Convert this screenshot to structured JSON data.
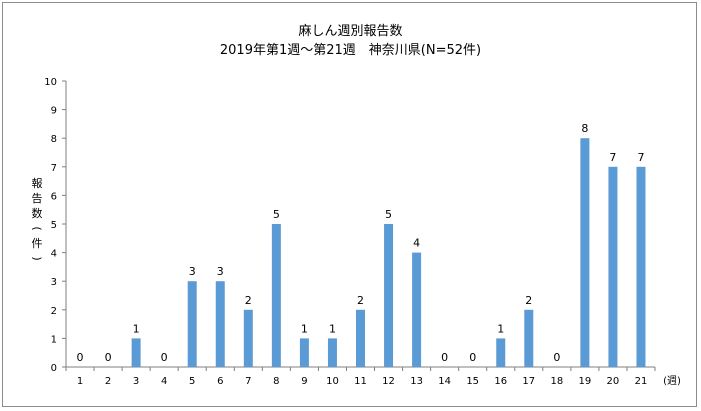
{
  "chart_data": {
    "type": "bar",
    "title": "麻しん週別報告数",
    "subtitle": "2019年第1週～第21週　神奈川県(N=52件)",
    "ylabel": "報告数(件)",
    "xlabel": "(週)",
    "categories": [
      "1",
      "2",
      "3",
      "4",
      "5",
      "6",
      "7",
      "8",
      "9",
      "10",
      "11",
      "12",
      "13",
      "14",
      "15",
      "16",
      "17",
      "18",
      "19",
      "20",
      "21"
    ],
    "values": [
      0,
      0,
      1,
      0,
      3,
      3,
      2,
      5,
      1,
      1,
      2,
      5,
      4,
      0,
      0,
      1,
      2,
      0,
      8,
      7,
      7
    ],
    "ylim": [
      0,
      10
    ],
    "yticks": [
      0,
      1,
      2,
      3,
      4,
      5,
      6,
      7,
      8,
      9,
      10
    ],
    "grid": false,
    "data_labels": true,
    "bar_color": "#5b9bd5"
  }
}
